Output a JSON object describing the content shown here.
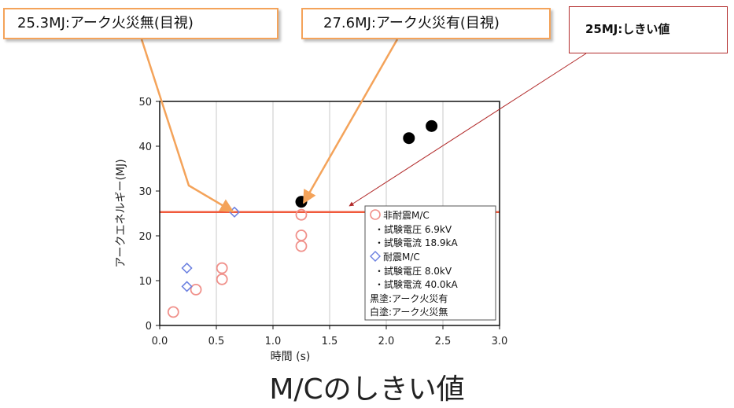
{
  "callouts": {
    "no_fire": "25.3MJ:アーク火災無(目視)",
    "fire": "27.6MJ:アーク火災有(目視)",
    "threshold": "25MJ:しきい値"
  },
  "caption": "M/Cのしきい値",
  "colors": {
    "threshold_line": "#f05a3c",
    "non_seismic": "#f0908a",
    "seismic": "#6a7fe0",
    "fire_marker": "#000000",
    "callout_border": "#f4a35a",
    "callout_arrow": "#f4a35a",
    "threshold_arrow": "#b22b2b"
  },
  "legend": {
    "non_seismic": "非耐震M/C",
    "ns_voltage": "・試験電圧 6.9kV",
    "ns_current": "・試験電流 18.9kA",
    "seismic": "耐震M/C",
    "s_voltage": "・試験電圧 8.0kV",
    "s_current": "・試験電流 40.0kA",
    "filled": "黒塗:アーク火災有",
    "open": "白塗:アーク火災無"
  },
  "chart_data": {
    "type": "scatter",
    "xlabel": "時間 (s)",
    "ylabel": "アークエネルギー(MJ)",
    "xlim": [
      0,
      3.0
    ],
    "ylim": [
      0,
      50
    ],
    "xticks": [
      "0.0",
      "0.5",
      "1.0",
      "1.5",
      "2.0",
      "2.5",
      "3.0"
    ],
    "yticks": [
      "0",
      "10",
      "20",
      "30",
      "40",
      "50"
    ],
    "grid": "vertical",
    "threshold": 25.3,
    "legend_position": "bottom-right",
    "series": [
      {
        "name": "非耐震M/C",
        "marker": "open-circle",
        "points": [
          [
            0.12,
            3.0
          ],
          [
            0.32,
            8.0
          ],
          [
            0.55,
            12.8
          ],
          [
            0.55,
            10.3
          ],
          [
            1.25,
            24.7
          ],
          [
            1.25,
            20.1
          ],
          [
            1.25,
            17.7
          ]
        ]
      },
      {
        "name": "耐震M/C",
        "marker": "open-diamond",
        "points": [
          [
            0.24,
            12.8
          ],
          [
            0.24,
            8.7
          ],
          [
            0.66,
            25.3
          ]
        ]
      },
      {
        "name": "黒塗:アーク火災有",
        "marker": "filled-circle",
        "points": [
          [
            1.25,
            27.6
          ],
          [
            2.2,
            41.8
          ],
          [
            2.4,
            44.5
          ]
        ]
      }
    ]
  }
}
